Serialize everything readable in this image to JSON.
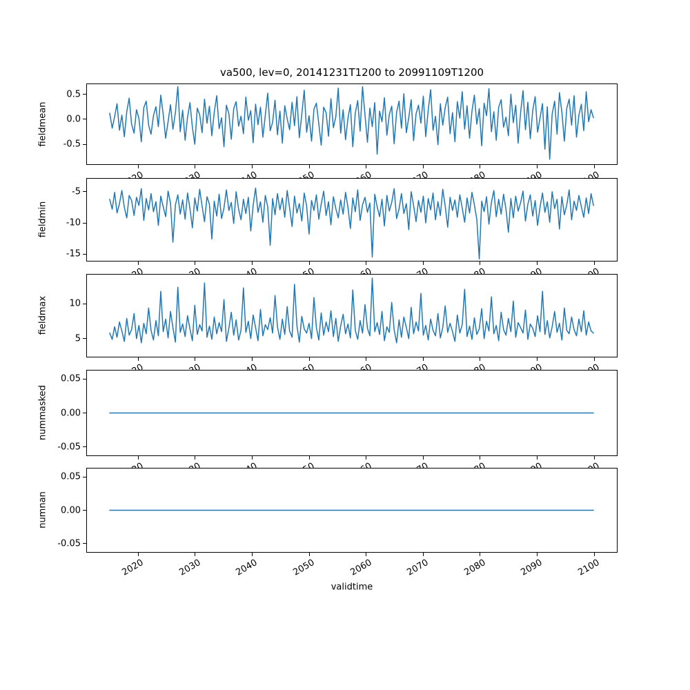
{
  "figure": {
    "title": "va500, lev=0, 20141231T1200 to 20991109T1200",
    "xlabel": "validtime",
    "line_color": "#1f77b4",
    "axis_color": "#000000",
    "background": "#ffffff",
    "xticks": [
      2020,
      2030,
      2040,
      2050,
      2060,
      2070,
      2080,
      2090,
      2100
    ],
    "xtick_labels": [
      "2020",
      "2030",
      "2040",
      "2050",
      "2060",
      "2070",
      "2080",
      "2090",
      "2100"
    ]
  },
  "chart_data": [
    {
      "type": "line",
      "ylabel": "fieldmean",
      "x_start": 2015.0,
      "x_end": 2099.9,
      "xlim": [
        2011.0,
        2104.0
      ],
      "ylim": [
        -0.9,
        0.7
      ],
      "yticks": [
        0.5,
        0.0,
        -0.5
      ],
      "ytick_labels": [
        "0.5",
        "0.0",
        "-0.5"
      ],
      "values": [
        0.12,
        -0.18,
        0.05,
        0.31,
        -0.22,
        0.08,
        -0.35,
        0.15,
        0.42,
        -0.1,
        -0.28,
        0.19,
        0.02,
        -0.45,
        0.23,
        0.36,
        -0.12,
        -0.3,
        0.07,
        0.25,
        -0.15,
        0.48,
        0.1,
        -0.38,
        -0.05,
        0.29,
        -0.2,
        0.13,
        0.65,
        -0.25,
        0.18,
        -0.42,
        0.04,
        0.33,
        -0.16,
        -0.5,
        0.22,
        0.09,
        -0.27,
        0.4,
        -0.08,
        0.26,
        -0.33,
        0.14,
        0.47,
        -0.19,
        0.03,
        -0.55,
        0.28,
        0.11,
        -0.4,
        0.21,
        0.35,
        -0.14,
        0.06,
        -0.29,
        0.44,
        -0.02,
        0.17,
        -0.47,
        0.3,
        -0.11,
        0.24,
        -0.36,
        0.08,
        0.52,
        -0.23,
        -0.06,
        0.38,
        -0.31,
        0.16,
        -0.48,
        0.27,
        0.01,
        -0.21,
        0.34,
        -0.13,
        0.45,
        -0.37,
        0.1,
        0.58,
        -0.26,
        0.07,
        -0.44,
        0.2,
        0.32,
        -0.09,
        -0.52,
        0.24,
        0.13,
        -0.34,
        0.41,
        -0.17,
        0.05,
        0.62,
        -0.28,
        0.19,
        -0.41,
        0.02,
        0.29,
        -0.55,
        0.12,
        0.37,
        -0.24,
        0.65,
        0.08,
        -0.46,
        0.22,
        -0.15,
        0.33,
        -0.7,
        0.16,
        -0.05,
        0.43,
        -0.32,
        0.09,
        0.26,
        -0.49,
        0.14,
        0.36,
        -0.18,
        0.51,
        -0.27,
        0.03,
        0.39,
        -0.43,
        0.11,
        0.28,
        -0.08,
        0.46,
        -0.35,
        0.18,
        0.59,
        -0.22,
        0.06,
        -0.51,
        0.31,
        -0.12,
        0.23,
        0.44,
        -0.29,
        0.13,
        -0.45,
        0.35,
        0.02,
        0.55,
        -0.2,
        0.27,
        -0.38,
        0.16,
        0.48,
        -0.1,
        0.21,
        -0.53,
        0.32,
        0.07,
        0.61,
        -0.25,
        0.15,
        -0.42,
        0.24,
        0.39,
        -0.16,
        0.04,
        -0.33,
        0.5,
        -0.07,
        0.28,
        -0.48,
        0.12,
        0.57,
        -0.21,
        0.34,
        -0.39,
        0.18,
        0.45,
        -0.26,
        0.02,
        0.31,
        -0.6,
        0.25,
        -0.8,
        0.1,
        0.36,
        -0.3,
        0.53,
        0.14,
        -0.44,
        0.22,
        0.4,
        -0.12,
        0.47,
        -0.36,
        0.08,
        0.3,
        -0.23,
        0.55,
        -0.05,
        0.19,
        0.03
      ]
    },
    {
      "type": "line",
      "ylabel": "fieldmin",
      "x_start": 2015.0,
      "x_end": 2099.9,
      "xlim": [
        2011.0,
        2104.0
      ],
      "ylim": [
        -16.1,
        -2.9
      ],
      "yticks": [
        -5,
        -10,
        -15
      ],
      "ytick_labels": [
        "-5",
        "-10",
        "-15"
      ],
      "values": [
        -6.2,
        -7.8,
        -5.1,
        -8.4,
        -6.9,
        -4.8,
        -7.5,
        -9.2,
        -5.6,
        -6.4,
        -8.8,
        -5.9,
        -7.2,
        -4.5,
        -9.6,
        -6.1,
        -7.9,
        -5.3,
        -8.2,
        -6.6,
        -10.4,
        -5.7,
        -7.4,
        -9.0,
        -4.9,
        -6.8,
        -13.1,
        -7.1,
        -5.5,
        -8.6,
        -6.3,
        -9.4,
        -5.2,
        -7.7,
        -10.8,
        -6.0,
        -8.1,
        -4.6,
        -7.3,
        -9.8,
        -5.8,
        -7.0,
        -12.6,
        -6.5,
        -8.9,
        -5.4,
        -9.3,
        -7.6,
        -4.7,
        -8.0,
        -6.7,
        -10.1,
        -5.0,
        -7.8,
        -9.5,
        -6.2,
        -8.5,
        -5.9,
        -11.3,
        -7.2,
        -4.4,
        -8.3,
        -6.6,
        -9.9,
        -5.6,
        -7.4,
        -13.6,
        -6.1,
        -8.7,
        -5.3,
        -7.9,
        -6.0,
        -9.1,
        -4.8,
        -7.6,
        -10.6,
        -5.7,
        -8.4,
        -6.9,
        -9.7,
        -5.2,
        -7.3,
        -11.8,
        -6.4,
        -8.0,
        -5.5,
        -9.4,
        -7.0,
        -4.9,
        -8.8,
        -6.6,
        -10.3,
        -5.8,
        -7.7,
        -9.2,
        -6.3,
        -8.6,
        -5.1,
        -7.5,
        -10.9,
        -6.0,
        -8.2,
        -4.7,
        -9.6,
        -7.1,
        -5.9,
        -8.3,
        -6.8,
        -15.5,
        -5.4,
        -7.4,
        -9.0,
        -6.2,
        -10.5,
        -5.6,
        -8.1,
        -6.7,
        -4.5,
        -9.3,
        -7.8,
        -5.3,
        -8.5,
        -6.9,
        -11.1,
        -5.0,
        -7.2,
        -9.8,
        -6.4,
        -8.3,
        -5.7,
        -10.0,
        -6.1,
        -7.9,
        -5.2,
        -9.5,
        -6.6,
        -8.8,
        -4.6,
        -7.3,
        -10.7,
        -5.9,
        -8.0,
        -6.3,
        -9.1,
        -5.5,
        -7.6,
        -9.9,
        -6.0,
        -8.4,
        -5.1,
        -7.1,
        -9.4,
        -15.8,
        -6.5,
        -8.2,
        -5.8,
        -10.2,
        -6.7,
        -4.8,
        -9.0,
        -6.2,
        -8.6,
        -5.4,
        -7.8,
        -11.5,
        -6.1,
        -9.2,
        -5.7,
        -8.1,
        -6.8,
        -4.9,
        -9.7,
        -7.0,
        -5.5,
        -8.9,
        -6.4,
        -10.4,
        -7.5,
        -5.2,
        -8.3,
        -6.6,
        -9.9,
        -5.0,
        -7.7,
        -6.2,
        -11.0,
        -5.8,
        -8.7,
        -7.1,
        -4.7,
        -9.5,
        -6.5,
        -8.0,
        -5.6,
        -7.4,
        -9.1,
        -6.0,
        -8.5,
        -5.3,
        -7.2
      ]
    },
    {
      "type": "line",
      "ylabel": "fieldmax",
      "x_start": 2015.0,
      "x_end": 2099.9,
      "xlim": [
        2011.0,
        2104.0
      ],
      "ylim": [
        2.4,
        14.2
      ],
      "yticks": [
        10,
        5
      ],
      "ytick_labels": [
        "10",
        "5"
      ],
      "values": [
        5.8,
        4.9,
        6.7,
        5.2,
        7.4,
        6.1,
        4.6,
        7.9,
        5.5,
        6.3,
        8.6,
        5.0,
        6.9,
        4.4,
        7.2,
        5.7,
        9.4,
        6.2,
        4.8,
        7.6,
        5.4,
        11.8,
        6.0,
        7.8,
        5.1,
        8.9,
        6.6,
        4.5,
        12.4,
        5.9,
        7.1,
        5.3,
        8.3,
        6.4,
        4.7,
        9.8,
        5.6,
        7.0,
        6.1,
        13.0,
        5.2,
        6.8,
        4.9,
        8.1,
        5.7,
        7.3,
        6.0,
        10.6,
        4.6,
        6.5,
        8.8,
        5.5,
        7.7,
        4.8,
        6.2,
        12.3,
        5.9,
        7.5,
        5.0,
        8.4,
        6.6,
        4.7,
        9.2,
        5.4,
        7.0,
        6.3,
        8.0,
        5.8,
        11.2,
        6.7,
        4.9,
        7.8,
        5.6,
        9.6,
        6.1,
        5.2,
        12.8,
        6.9,
        4.5,
        8.2,
        6.4,
        5.8,
        7.2,
        5.0,
        10.9,
        6.6,
        4.8,
        8.7,
        5.5,
        7.4,
        6.0,
        9.0,
        5.3,
        7.9,
        4.6,
        6.8,
        8.5,
        5.7,
        7.1,
        5.1,
        12.0,
        6.2,
        4.9,
        7.6,
        5.8,
        9.9,
        6.5,
        5.4,
        13.7,
        6.0,
        7.3,
        5.6,
        8.9,
        4.7,
        6.7,
        5.9,
        10.2,
        6.3,
        4.4,
        7.7,
        5.2,
        8.1,
        6.6,
        5.0,
        9.5,
        5.7,
        7.4,
        6.1,
        11.5,
        5.5,
        6.9,
        4.8,
        7.8,
        6.2,
        5.4,
        8.6,
        5.1,
        6.6,
        9.7,
        5.9,
        7.2,
        6.0,
        4.6,
        8.4,
        5.8,
        7.0,
        12.1,
        5.3,
        6.8,
        4.9,
        8.0,
        5.6,
        6.4,
        9.3,
        5.0,
        7.5,
        6.1,
        11.0,
        5.7,
        6.9,
        4.7,
        8.8,
        6.3,
        5.5,
        7.9,
        6.0,
        10.4,
        5.2,
        7.3,
        6.6,
        5.8,
        9.1,
        4.9,
        7.1,
        6.5,
        5.3,
        8.3,
        6.0,
        11.8,
        5.6,
        7.6,
        5.1,
        6.7,
        8.9,
        5.9,
        7.2,
        4.8,
        9.4,
        6.2,
        5.7,
        8.1,
        6.3,
        5.4,
        7.8,
        6.0,
        9.0,
        5.5,
        7.4,
        6.1,
        5.8
      ]
    },
    {
      "type": "line",
      "ylabel": "nummasked",
      "x_start": 2015.0,
      "x_end": 2099.9,
      "xlim": [
        2011.0,
        2104.0
      ],
      "ylim": [
        -0.0625,
        0.0625
      ],
      "yticks": [
        0.05,
        0.0,
        -0.05
      ],
      "ytick_labels": [
        "0.05",
        "0.00",
        "-0.05"
      ],
      "values": [
        0.0,
        0.0
      ]
    },
    {
      "type": "line",
      "ylabel": "numnan",
      "x_start": 2015.0,
      "x_end": 2099.9,
      "xlim": [
        2011.0,
        2104.0
      ],
      "ylim": [
        -0.0625,
        0.0625
      ],
      "yticks": [
        0.05,
        0.0,
        -0.05
      ],
      "ytick_labels": [
        "0.05",
        "0.00",
        "-0.05"
      ],
      "values": [
        0.0,
        0.0
      ]
    }
  ]
}
